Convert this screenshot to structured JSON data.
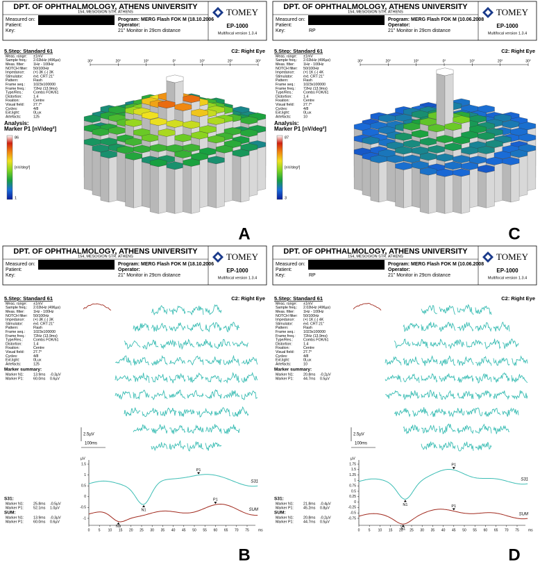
{
  "panels": [
    {
      "letter": "A",
      "header": {
        "title": "DPT. OF OPHTHALMOLOGY, ATHENS UNIVERSITY",
        "address": "154, MESOGION STR. ATHENS",
        "labels": [
          "Measured on:",
          "Patient:",
          "Key:"
        ],
        "program": "Program: MERG Flash FOK M (18.10.2006",
        "operator": "Operator:",
        "monitor": "21\" Monitor in 29cm distance",
        "logo": "TOMEY",
        "model": "EP-1000",
        "version": "Multifocal version 1.3.4"
      },
      "step": "5.Step: Standard 61",
      "eye": "C2: Right Eye",
      "params": [
        [
          "Meas. range:",
          "±1mV"
        ],
        [
          "Sample freq.:",
          "2.02kHz (496µs)"
        ],
        [
          "Meas. filter:",
          "1Hz - 100Hz"
        ],
        [
          "NOTCH filter:",
          "50/100Hz"
        ],
        [
          "Impedance:",
          "(+) 3K (-) 3K"
        ],
        [
          "Stimulator:",
          "ext. CRT 21\""
        ],
        [
          "Pattern:",
          "Flash"
        ],
        [
          "Frame seq.:",
          "1023x100000"
        ],
        [
          "Frame freq.:",
          "72Hz (13.9ms)"
        ],
        [
          "Type/Res.:",
          "Combs FOK/61"
        ],
        [
          "Distortion:",
          "1.4"
        ],
        [
          "Fixation:",
          "Centre"
        ],
        [
          "Visual field:",
          "27.7°"
        ],
        [
          "Cycles:",
          "4/8"
        ],
        [
          "Ext.light:",
          "0Lux"
        ],
        [
          "Artefacts:",
          "125"
        ]
      ],
      "analysis": "Analysis:",
      "marker": "Marker P1 [nV/deg²]",
      "scale": {
        "max": "86",
        "unit": "[nV/deg²]",
        "min": "1"
      },
      "angles": [
        "30°",
        "20°",
        "10°",
        "0°",
        "10°",
        "20°",
        "30°"
      ]
    },
    {
      "letter": "C",
      "header": {
        "title": "DPT. OF OPHTHALMOLOGY, ATHENS UNIVERSITY",
        "address": "154, MESOGION STR. ATHENS",
        "labels": [
          "Measured on:",
          "Patient:",
          "Key:"
        ],
        "key_value": "RP",
        "program": "Program: MERG Flash FOK M (10.06.2008",
        "operator": "Operator:",
        "monitor": "21\" Monitor in 29cm distance",
        "logo": "TOMEY",
        "model": "EP-1000",
        "version": "Multifocal version 1.3.4"
      },
      "step": "5.Step: Standard 61",
      "eye": "C2: Right Eye",
      "params": [
        [
          "Meas. range:",
          "±1mV"
        ],
        [
          "Sample freq.:",
          "2.02kHz (496µs)"
        ],
        [
          "Meas. filter:",
          "1Hz - 100Hz"
        ],
        [
          "NOTCH filter:",
          "50/100Hz"
        ],
        [
          "Impedance:",
          "(+) 1K (-) 4K"
        ],
        [
          "Stimulator:",
          "ext. CRT 21\""
        ],
        [
          "Pattern:",
          "Flash"
        ],
        [
          "Frame seq.:",
          "1023x100000"
        ],
        [
          "Frame freq.:",
          "72Hz (13.9ms)"
        ],
        [
          "Type/Res.:",
          "Combs FOK/61"
        ],
        [
          "Distortion:",
          "1.4"
        ],
        [
          "Fixation:",
          "Centre"
        ],
        [
          "Visual field:",
          "27.7°"
        ],
        [
          "Cycles:",
          "4/8"
        ],
        [
          "Ext.light:",
          "0Lux"
        ],
        [
          "Artefacts:",
          "10"
        ]
      ],
      "analysis": "Analysis:",
      "marker": "Marker P1 [nV/deg²]",
      "scale": {
        "max": "87",
        "unit": "[nV/deg²]",
        "min": "3"
      },
      "angles": [
        "30°",
        "20°",
        "10°",
        "0°",
        "10°",
        "20°",
        "30°"
      ]
    },
    {
      "letter": "B",
      "header": {
        "title": "DPT. OF OPHTHALMOLOGY, ATHENS UNIVERSITY",
        "address": "154, MESOGION STR. ATHENS",
        "labels": [
          "Measured on:",
          "Patient:",
          "Key:"
        ],
        "program": "Program: MERG Flash FOK M (18.10.2006",
        "operator": "Operator:",
        "monitor": "21\" Monitor in 29cm distance",
        "logo": "TOMEY",
        "model": "EP-1000",
        "version": "Multifocal version 1.3.4"
      },
      "step": "5.Step: Standard 61",
      "eye": "C2: Right Eye",
      "params": [
        [
          "Meas. range:",
          "±1mV"
        ],
        [
          "Sample freq.:",
          "2.02kHz (496µs)"
        ],
        [
          "Meas. filter:",
          "1Hz - 100Hz"
        ],
        [
          "NOTCH filter:",
          "50/100Hz"
        ],
        [
          "Impedance:",
          "(+) 3K (-) 3K"
        ],
        [
          "Stimulator:",
          "ext. CRT 21\""
        ],
        [
          "Pattern:",
          "Flash"
        ],
        [
          "Frame seq.:",
          "1023x100000"
        ],
        [
          "Frame freq.:",
          "72Hz (13.9ms)"
        ],
        [
          "Type/Res.:",
          "Combs FOK/61"
        ],
        [
          "Distortion:",
          "1.4"
        ],
        [
          "Fixation:",
          "Centre"
        ],
        [
          "Visual field:",
          "27.7°"
        ],
        [
          "Cycles:",
          "4/8"
        ],
        [
          "Ext.light:",
          "0Lux"
        ],
        [
          "Artefacts:",
          "125"
        ]
      ],
      "summary_title": "Marker summary:",
      "summary": [
        [
          "Marker N1:",
          "13.9ms",
          "-0.3µV"
        ],
        [
          "Marker P1:",
          "60.0ms",
          "0.6µV"
        ]
      ],
      "amp_scale": "2.5µV",
      "time_scale": "100ms",
      "plot": {
        "y_unit": "µV",
        "yticks": [
          1.5,
          1,
          0.5,
          0,
          -0.5,
          -1
        ],
        "xticks": [
          0,
          5,
          10,
          15,
          20,
          25,
          30,
          35,
          40,
          45,
          50,
          55,
          60,
          65,
          70,
          75
        ],
        "x_unit": "ms",
        "s31": "S31",
        "sum": "SUM",
        "s31_n1": "N1",
        "s31_p1": "P1",
        "sum_p1": "P1",
        "sum_n1": "N1"
      },
      "s31_title": "S31:",
      "s31": [
        [
          "Marker N1:",
          "25.8ms",
          "-0.5µV"
        ],
        [
          "Marker P1:",
          "52.1ms",
          "1.0µV"
        ]
      ],
      "sum_title": "SUM:",
      "sum": [
        [
          "Marker N1:",
          "13.9ms",
          "-0.3µV"
        ],
        [
          "Marker P1:",
          "60.0ms",
          "0.6µV"
        ]
      ]
    },
    {
      "letter": "D",
      "header": {
        "title": "DPT. OF OPHTHALMOLOGY, ATHENS UNIVERSITY",
        "address": "154, MESOGION STR. ATHENS",
        "labels": [
          "Measured on:",
          "Patient:",
          "Key:"
        ],
        "key_value": "RP",
        "program": "Program: MERG Flash FOK M (10.06.2008",
        "operator": "Operator:",
        "monitor": "21\" Monitor in 29cm distance",
        "logo": "TOMEY",
        "model": "EP-1000",
        "version": "Multifocal version 1.3.4"
      },
      "step": "5.Step: Standard 61",
      "eye": "C2: Right Eye",
      "params": [
        [
          "Meas. range:",
          "±1mV"
        ],
        [
          "Sample freq.:",
          "2.02kHz (496µs)"
        ],
        [
          "Meas. filter:",
          "1Hz - 100Hz"
        ],
        [
          "NOTCH filter:",
          "50/100Hz"
        ],
        [
          "Impedance:",
          "(+) 1K (-) 4K"
        ],
        [
          "Stimulator:",
          "ext. CRT 21\""
        ],
        [
          "Pattern:",
          "Flash"
        ],
        [
          "Frame seq.:",
          "1023x100000"
        ],
        [
          "Frame freq.:",
          "72Hz (13.9ms)"
        ],
        [
          "Type/Res.:",
          "Combs FOK/61"
        ],
        [
          "Distortion:",
          "1.4"
        ],
        [
          "Fixation:",
          "Centre"
        ],
        [
          "Visual field:",
          "27.7°"
        ],
        [
          "Cycles:",
          "4/8"
        ],
        [
          "Ext.light:",
          "0Lux"
        ],
        [
          "Artefacts:",
          "10"
        ]
      ],
      "summary_title": "Marker summary:",
      "summary": [
        [
          "Marker N1:",
          "20.8ms",
          "-0.2µV"
        ],
        [
          "Marker P1:",
          "44.7ms",
          "0.5µV"
        ]
      ],
      "amp_scale": "2.5µV",
      "time_scale": "100ms",
      "plot": {
        "y_unit": "µV",
        "yticks": [
          1.75,
          1.5,
          1.25,
          1,
          0.75,
          0.5,
          0.25,
          0,
          -0.25,
          -0.5,
          -0.75
        ],
        "xticks": [
          0,
          5,
          10,
          15,
          20,
          25,
          30,
          35,
          40,
          45,
          50,
          55,
          60,
          65,
          70,
          75
        ],
        "x_unit": "ms",
        "s31": "S31",
        "sum": "SUM",
        "s31_n1": "N1",
        "s31_p1": "P1",
        "sum_p1": "P1",
        "sum_n1": "N1"
      },
      "s31_title": "S31:",
      "s31": [
        [
          "Marker N1:",
          "21.8ms",
          "-0.4µV"
        ],
        [
          "Marker P1:",
          "45.2ms",
          "0.8µV"
        ]
      ],
      "sum_title": "SUM:",
      "sum": [
        [
          "Marker N1:",
          "20.8ms",
          "-0.2µV"
        ],
        [
          "Marker P1:",
          "44.7ms",
          "0.5µV"
        ]
      ]
    }
  ]
}
